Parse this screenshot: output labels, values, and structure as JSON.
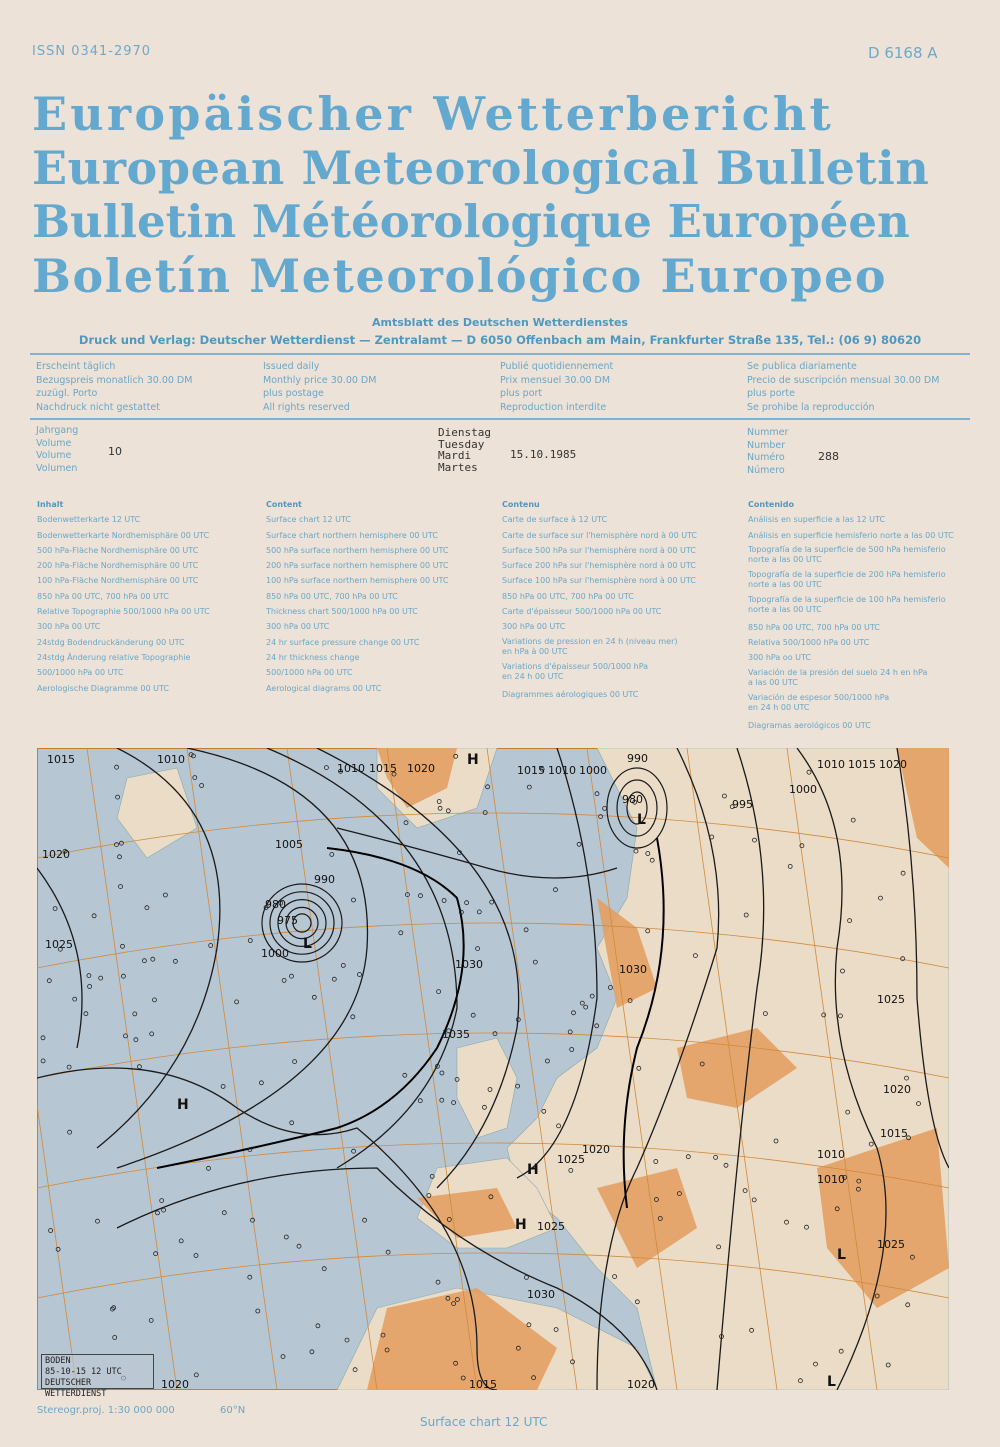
{
  "header": {
    "issn": "ISSN 0341-2970",
    "code": "D 6168 A",
    "titles": [
      "Europäischer Wetterbericht",
      "European Meteorological Bulletin",
      "Bulletin Météorologique Européen",
      "Boletín Meteorológico Europeo"
    ],
    "subtitle": "Amtsblatt des Deutschen Wetterdienstes",
    "publisher": "Druck und Verlag: Deutscher Wetterdienst — Zentralamt — D 6050 Offenbach am Main, Frankfurter Straße 135, Tel.: (06 9) 80620"
  },
  "info": [
    [
      "Erscheint täglich",
      "Bezugspreis monatlich 30.00 DM",
      "zuzügl. Porto",
      "Nachdruck nicht gestattet"
    ],
    [
      "Issued daily",
      "Monthly price 30.00 DM",
      "plus postage",
      "All rights reserved"
    ],
    [
      "Publié quotidiennement",
      "Prix mensuel 30.00 DM",
      "plus port",
      "Reproduction interdite"
    ],
    [
      "Se publica diariamente",
      "Precio de suscripción mensual 30.00 DM",
      "plus porte",
      "Se prohibe la reproducción"
    ]
  ],
  "issue": {
    "volume_labels": [
      "Jahrgang",
      "Volume",
      "Volume",
      "Volumen"
    ],
    "volume": "10",
    "day_labels": [
      "Dienstag",
      "Tuesday",
      "Mardi",
      "Martes"
    ],
    "date": "15.10.1985",
    "number_labels": [
      "Nummer",
      "Number",
      "Numéro",
      "Número"
    ],
    "number": "288"
  },
  "contents": [
    {
      "heading": "Inhalt",
      "items": [
        "Bodenwetterkarte 12 UTC",
        "Bodenwetterkarte Nordhemisphäre 00 UTC",
        "500 hPa-Fläche Nordhemisphäre 00 UTC",
        "200 hPa-Fläche Nordhemisphäre 00 UTC",
        "100 hPa-Fläche Nordhemisphäre 00 UTC",
        "850 hPa 00 UTC, 700 hPa 00 UTC",
        "Relative Topographie 500/1000 hPa 00 UTC",
        "300 hPa 00 UTC",
        "24stdg Bodendruckänderung 00 UTC",
        "24stdg Änderung relative Topographie",
        "500/1000 hPa 00 UTC",
        "Aerologische Diagramme 00 UTC"
      ]
    },
    {
      "heading": "Content",
      "items": [
        "Surface chart 12 UTC",
        "Surface chart northern hemisphere 00 UTC",
        "500 hPa surface northern hemisphere 00 UTC",
        "200 hPa surface northern hemisphere 00 UTC",
        "100 hPa surface northern hemisphere 00 UTC",
        "850 hPa 00 UTC, 700 hPa 00 UTC",
        "Thickness chart 500/1000 hPa 00 UTC",
        "300 hPa 00 UTC",
        "24 hr surface pressure change 00 UTC",
        "24 hr thickness change",
        "500/1000 hPa 00 UTC",
        "Aerological diagrams 00 UTC"
      ]
    },
    {
      "heading": "Contenu",
      "items": [
        "Carte de surface à 12 UTC",
        "Carte de surface sur l'hemisphère nord à 00 UTC",
        "Surface 500 hPa sur l'hemisphère nord à 00 UTC",
        "Surface 200 hPa sur l'hemisphère nord à 00 UTC",
        "Surface 100 hPa sur l'hemisphère nord à 00 UTC",
        "850 hPa 00 UTC, 700 hPa 00 UTC",
        "Carte d'épaisseur 500/1000 hPa 00 UTC",
        "300 hPa 00 UTC",
        "Variations de pression en 24 h (niveau mer)\nen hPa à 00 UTC",
        "Variations d'épaisseur 500/1000 hPa\nen 24 h 00 UTC",
        "Diagrammes aérologiques 00 UTC"
      ]
    },
    {
      "heading": "Contenido",
      "items": [
        "Análisis en superficie a las 12 UTC",
        "Análisis en superficie hemisferio norte a las 00 UTC",
        "Topografía de la superficie de 500 hPa hemisferio\nnorte a las 00 UTC",
        "Topografía de la superficie de 200 hPa hemisferio\nnorte a las 00 UTC",
        "Topografía de la superficie de 100 hPa hemisferio\nnorte a las 00 UTC",
        "850 hPa 00 UTC, 700 hPa 00 UTC",
        "Relativa 500/1000 hPa 00 UTC",
        "300 hPa oo UTC",
        "Variación de la presión del suelo 24 h en hPa\na las 00 UTC",
        "Variación de espesor 500/1000 hPa\nen 24 h 00 UTC",
        "Diagramas aerológicos 00 UTC"
      ]
    }
  ],
  "map": {
    "stamp": [
      "BODEN",
      "85-10-15 12 UTC",
      "DEUTSCHER WETTERDIENST"
    ],
    "isobar_labels": [
      "1015",
      "1010",
      "1010",
      "1015",
      "1020",
      "1015",
      "1010",
      "1000",
      "990",
      "980",
      "995",
      "1000",
      "1010",
      "1015",
      "1020",
      "1020",
      "1005",
      "990",
      "980",
      "975",
      "1000",
      "1025",
      "1030",
      "1035",
      "1030",
      "1025",
      "1020",
      "1015",
      "1010",
      "1025",
      "1030",
      "1025",
      "1020",
      "1020",
      "1015",
      "1020",
      "1025",
      "1010"
    ],
    "pressure_centres": [
      "H",
      "H",
      "H",
      "H",
      "L",
      "L",
      "L",
      "L"
    ],
    "colors": {
      "sea": "#b7c6d3",
      "land_low": "#eadcc6",
      "land_high": "#e3a062",
      "isobar": "#1a1a1a",
      "graticule": "#d08a3c"
    }
  },
  "footer": {
    "projection": "Stereogr.proj. 1:30 000 000",
    "latitude": "60°N",
    "caption": "Surface chart 12 UTC"
  }
}
